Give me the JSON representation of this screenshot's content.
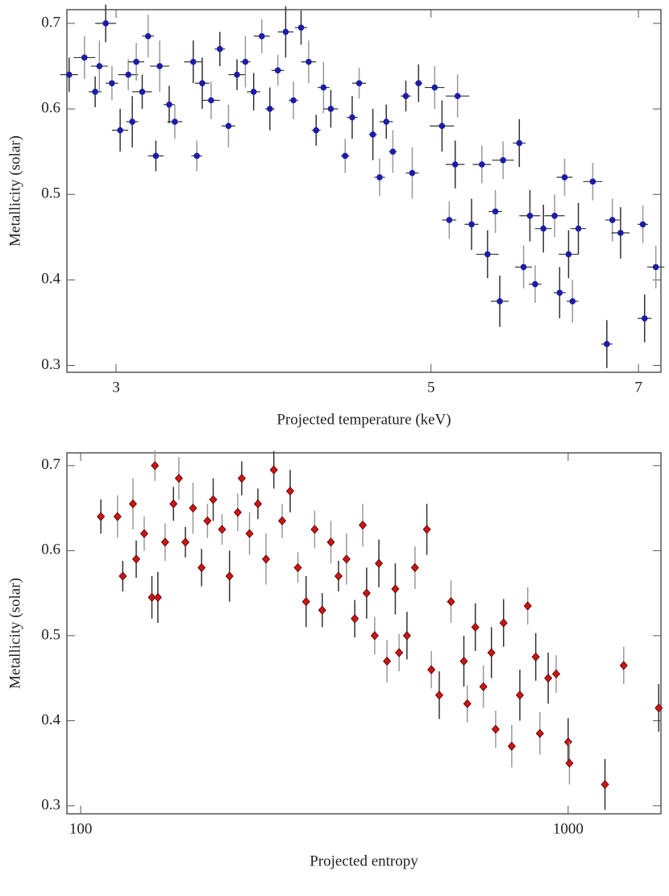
{
  "chart_data": [
    {
      "type": "scatter",
      "xlabel": "Projected temperature (keV)",
      "ylabel": "Metallicity (solar)",
      "xlog": true,
      "xlim": [
        2.77,
        7.26
      ],
      "xticks": [
        3,
        5,
        7
      ],
      "ylim": [
        0.292,
        0.716
      ],
      "yticks": [
        0.3,
        0.4,
        0.5,
        0.6,
        0.7
      ],
      "color": "#1c1ca8",
      "marker": "circle",
      "x": [
        2.78,
        2.85,
        2.9,
        2.92,
        2.95,
        2.98,
        3.02,
        3.06,
        3.08,
        3.1,
        3.13,
        3.16,
        3.2,
        3.22,
        3.27,
        3.3,
        3.4,
        3.42,
        3.45,
        3.5,
        3.55,
        3.6,
        3.65,
        3.7,
        3.75,
        3.8,
        3.85,
        3.9,
        3.95,
        4.0,
        4.05,
        4.1,
        4.15,
        4.2,
        4.25,
        4.35,
        4.4,
        4.45,
        4.55,
        4.6,
        4.65,
        4.7,
        4.8,
        4.85,
        4.9,
        5.03,
        5.09,
        5.15,
        5.2,
        5.22,
        5.34,
        5.43,
        5.48,
        5.55,
        5.59,
        5.62,
        5.77,
        5.81,
        5.87,
        5.92,
        6.0,
        6.11,
        6.16,
        6.21,
        6.25,
        6.29,
        6.35,
        6.5,
        6.65,
        6.71,
        6.8,
        7.05,
        7.07,
        7.2
      ],
      "values": [
        0.64,
        0.66,
        0.62,
        0.65,
        0.7,
        0.63,
        0.575,
        0.64,
        0.585,
        0.655,
        0.62,
        0.685,
        0.545,
        0.65,
        0.605,
        0.585,
        0.655,
        0.545,
        0.63,
        0.61,
        0.67,
        0.58,
        0.64,
        0.655,
        0.62,
        0.685,
        0.6,
        0.645,
        0.69,
        0.61,
        0.695,
        0.655,
        0.575,
        0.625,
        0.6,
        0.545,
        0.59,
        0.63,
        0.57,
        0.52,
        0.585,
        0.55,
        0.615,
        0.525,
        0.63,
        0.625,
        0.58,
        0.47,
        0.535,
        0.615,
        0.465,
        0.535,
        0.43,
        0.48,
        0.375,
        0.54,
        0.56,
        0.415,
        0.475,
        0.395,
        0.46,
        0.475,
        0.385,
        0.52,
        0.43,
        0.375,
        0.46,
        0.515,
        0.325,
        0.47,
        0.455,
        0.465,
        0.355,
        0.415
      ],
      "yerr": [
        0.02,
        0.025,
        0.018,
        0.03,
        0.022,
        0.02,
        0.025,
        0.018,
        0.03,
        0.022,
        0.02,
        0.025,
        0.018,
        0.03,
        0.022,
        0.02,
        0.025,
        0.018,
        0.03,
        0.022,
        0.02,
        0.025,
        0.018,
        0.03,
        0.022,
        0.02,
        0.025,
        0.018,
        0.03,
        0.022,
        0.02,
        0.025,
        0.018,
        0.03,
        0.022,
        0.02,
        0.025,
        0.018,
        0.03,
        0.022,
        0.02,
        0.025,
        0.018,
        0.03,
        0.022,
        0.025,
        0.03,
        0.022,
        0.028,
        0.025,
        0.03,
        0.022,
        0.028,
        0.025,
        0.03,
        0.022,
        0.028,
        0.025,
        0.03,
        0.022,
        0.028,
        0.025,
        0.03,
        0.022,
        0.028,
        0.025,
        0.03,
        0.022,
        0.028,
        0.025,
        0.03,
        0.022,
        0.028,
        0.025
      ],
      "xerr": [
        0.04,
        0.05,
        0.03,
        0.04,
        0.05,
        0.03,
        0.04,
        0.05,
        0.03,
        0.04,
        0.05,
        0.03,
        0.04,
        0.05,
        0.03,
        0.04,
        0.05,
        0.03,
        0.04,
        0.05,
        0.03,
        0.04,
        0.05,
        0.03,
        0.04,
        0.05,
        0.03,
        0.04,
        0.05,
        0.03,
        0.04,
        0.05,
        0.03,
        0.04,
        0.05,
        0.03,
        0.04,
        0.05,
        0.03,
        0.04,
        0.05,
        0.03,
        0.04,
        0.05,
        0.03,
        0.08,
        0.1,
        0.06,
        0.08,
        0.1,
        0.06,
        0.08,
        0.1,
        0.06,
        0.08,
        0.1,
        0.06,
        0.08,
        0.1,
        0.06,
        0.08,
        0.1,
        0.06,
        0.08,
        0.1,
        0.06,
        0.08,
        0.1,
        0.06,
        0.08,
        0.1,
        0.06,
        0.08,
        0.1
      ]
    },
    {
      "type": "scatter",
      "xlabel": "Projected entropy",
      "ylabel": "Metallicity (solar)",
      "xlog": true,
      "xlim": [
        93.7,
        1550
      ],
      "xticks": [
        100,
        1000
      ],
      "ylim": [
        0.2905,
        0.715
      ],
      "yticks": [
        0.3,
        0.4,
        0.5,
        0.6,
        0.7
      ],
      "color": "#d01414",
      "marker": "diamond",
      "x": [
        110,
        119,
        122,
        128,
        130,
        135,
        140,
        142,
        144,
        149,
        155,
        159,
        164,
        170,
        177,
        182,
        187,
        195,
        202,
        210,
        214,
        222,
        231,
        240,
        249,
        259,
        269,
        279,
        290,
        302,
        313,
        326,
        338,
        351,
        365,
        379,
        386,
        401,
        409,
        425,
        442,
        450,
        467,
        485,
        513,
        524,
        544,
        575,
        611,
        621,
        645,
        670,
        696,
        710,
        737,
        766,
        796,
        826,
        858,
        875,
        910,
        945,
        1000,
        1006,
        1190,
        1300,
        1534
      ],
      "values": [
        0.64,
        0.64,
        0.57,
        0.655,
        0.59,
        0.62,
        0.545,
        0.7,
        0.545,
        0.61,
        0.655,
        0.685,
        0.61,
        0.65,
        0.58,
        0.635,
        0.66,
        0.625,
        0.57,
        0.645,
        0.685,
        0.62,
        0.655,
        0.59,
        0.695,
        0.635,
        0.67,
        0.58,
        0.54,
        0.625,
        0.53,
        0.61,
        0.57,
        0.59,
        0.52,
        0.63,
        0.55,
        0.5,
        0.585,
        0.47,
        0.555,
        0.48,
        0.5,
        0.58,
        0.625,
        0.46,
        0.43,
        0.54,
        0.47,
        0.42,
        0.51,
        0.44,
        0.48,
        0.39,
        0.515,
        0.37,
        0.43,
        0.535,
        0.475,
        0.385,
        0.45,
        0.455,
        0.375,
        0.35,
        0.325,
        0.465,
        0.415
      ],
      "yerr": [
        0.02,
        0.025,
        0.018,
        0.03,
        0.022,
        0.02,
        0.025,
        0.018,
        0.03,
        0.022,
        0.02,
        0.025,
        0.018,
        0.03,
        0.022,
        0.02,
        0.025,
        0.018,
        0.03,
        0.022,
        0.02,
        0.025,
        0.018,
        0.03,
        0.022,
        0.02,
        0.025,
        0.018,
        0.03,
        0.022,
        0.02,
        0.025,
        0.018,
        0.03,
        0.022,
        0.025,
        0.03,
        0.022,
        0.028,
        0.025,
        0.03,
        0.022,
        0.028,
        0.025,
        0.03,
        0.022,
        0.028,
        0.025,
        0.03,
        0.022,
        0.028,
        0.025,
        0.03,
        0.022,
        0.028,
        0.025,
        0.03,
        0.022,
        0.028,
        0.025,
        0.03,
        0.022,
        0.028,
        0.025,
        0.03,
        0.022,
        0.028
      ]
    }
  ]
}
